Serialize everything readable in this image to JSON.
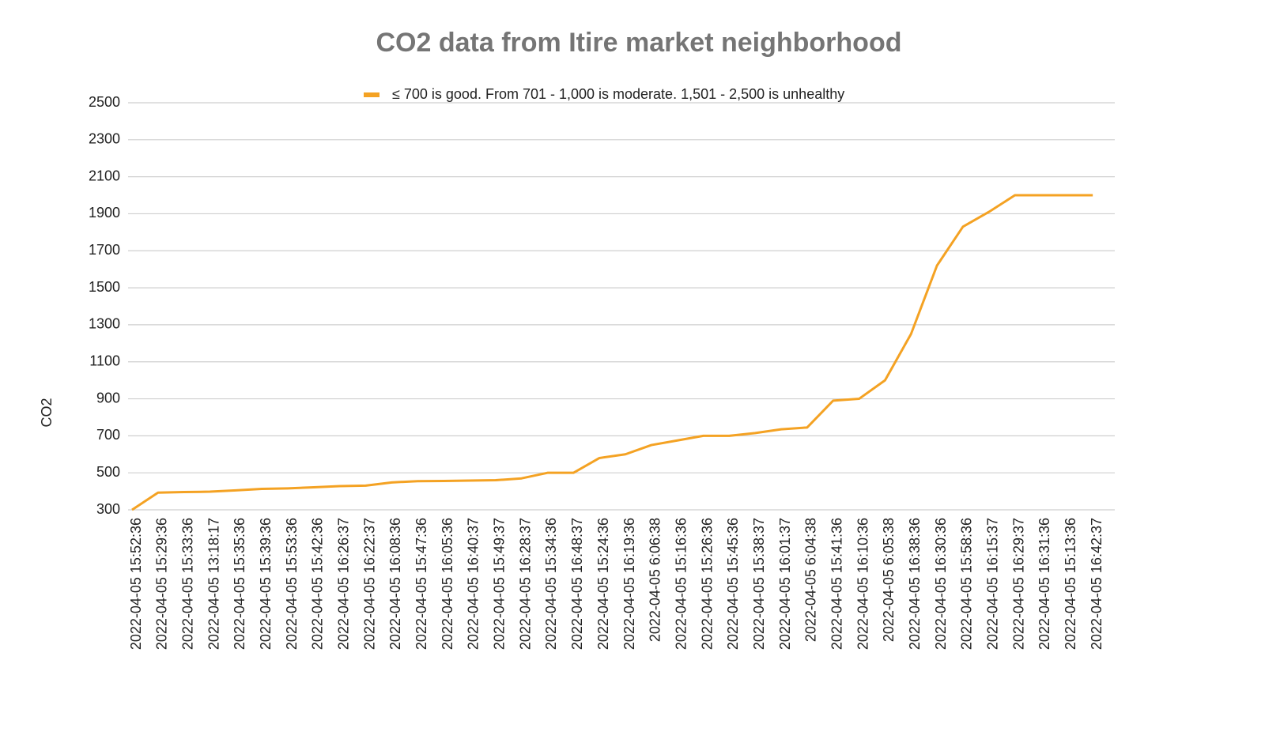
{
  "chart_data": {
    "type": "line",
    "title": "CO2 data from Itire market neighborhood",
    "y_label": "CO2",
    "categories": [
      "2022-04-05 15:52:36",
      "2022-04-05 15:29:36",
      "2022-04-05 15:33:36",
      "2022-04-05 13:18:17",
      "2022-04-05 15:35:36",
      "2022-04-05 15:39:36",
      "2022-04-05 15:53:36",
      "2022-04-05 15:42:36",
      "2022-04-05 16:26:37",
      "2022-04-05 16:22:37",
      "2022-04-05 16:08:36",
      "2022-04-05 15:47:36",
      "2022-04-05 16:05:36",
      "2022-04-05 16:40:37",
      "2022-04-05 15:49:37",
      "2022-04-05 16:28:37",
      "2022-04-05 15:34:36",
      "2022-04-05 16:48:37",
      "2022-04-05 15:24:36",
      "2022-04-05 16:19:36",
      "2022-04-05 6:06:38",
      "2022-04-05 15:16:36",
      "2022-04-05 15:26:36",
      "2022-04-05 15:45:36",
      "2022-04-05 15:38:37",
      "2022-04-05 16:01:37",
      "2022-04-05 6:04:38",
      "2022-04-05 15:41:36",
      "2022-04-05 16:10:36",
      "2022-04-05 6:05:38",
      "2022-04-05 16:38:36",
      "2022-04-05 16:30:36",
      "2022-04-05 15:58:36",
      "2022-04-05 16:15:37",
      "2022-04-05 16:29:37",
      "2022-04-05 16:31:36",
      "2022-04-05 15:13:36",
      "2022-04-05 16:42:37"
    ],
    "series": [
      {
        "name": "≤ 700 is good. From 701 - 1,000 is moderate. 1,501 - 2,500 is unhealthy",
        "color": "#f4a223",
        "values": [
          300,
          393,
          396,
          398,
          405,
          413,
          416,
          422,
          428,
          431,
          448,
          455,
          456,
          458,
          460,
          470,
          500,
          500,
          580,
          600,
          650,
          675,
          700,
          700,
          715,
          735,
          745,
          890,
          900,
          1000,
          1250,
          1620,
          1830,
          1910,
          2000,
          2000,
          2000,
          2000
        ]
      }
    ],
    "ylim": [
      300,
      2500
    ],
    "yticks": [
      300,
      500,
      700,
      900,
      1100,
      1300,
      1500,
      1700,
      1900,
      2100,
      2300,
      2500
    ],
    "grid": true,
    "legend": "top"
  }
}
